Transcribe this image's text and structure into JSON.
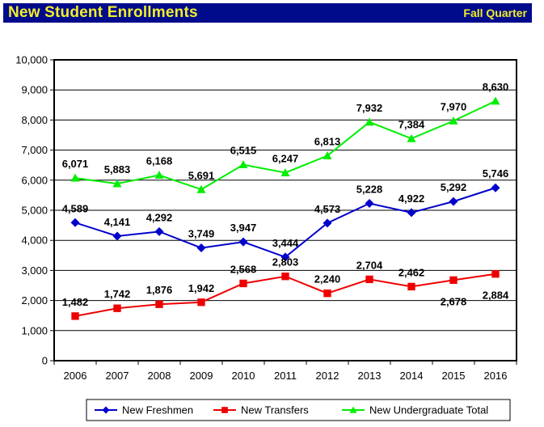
{
  "header": {
    "title": "New Student Enrollments",
    "subtitle": "Fall Quarter",
    "background_color": "#000b8c",
    "text_color": "#f2ee2a"
  },
  "chart_data": {
    "type": "line",
    "title": "",
    "xlabel": "",
    "ylabel": "",
    "categories": [
      "2006",
      "2007",
      "2008",
      "2009",
      "2010",
      "2011",
      "2012",
      "2013",
      "2014",
      "2015",
      "2016"
    ],
    "ylim": [
      0,
      10000
    ],
    "yticks": [
      "0",
      "1,000",
      "2,000",
      "3,000",
      "4,000",
      "5,000",
      "6,000",
      "7,000",
      "8,000",
      "9,000",
      "10,000"
    ],
    "grid": true,
    "legend_position": "bottom",
    "series": [
      {
        "name": "New Freshmen",
        "color": "#0000cc",
        "marker": "diamond",
        "values": [
          4589,
          4141,
          4292,
          3749,
          3947,
          3444,
          4573,
          5228,
          4922,
          5292,
          5746
        ],
        "labels": [
          "4,589",
          "4,141",
          "4,292",
          "3,749",
          "3,947",
          "3,444",
          "4,573",
          "5,228",
          "4,922",
          "5,292",
          "5,746"
        ]
      },
      {
        "name": "New Transfers",
        "color": "#ee0000",
        "marker": "square",
        "values": [
          1482,
          1742,
          1876,
          1942,
          2568,
          2803,
          2240,
          2704,
          2462,
          2678,
          2884
        ],
        "labels": [
          "1,482",
          "1,742",
          "1,876",
          "1,942",
          "2,568",
          "2,803",
          "2,240",
          "2,704",
          "2,462",
          "2,678",
          "2,884"
        ]
      },
      {
        "name": "New Undergraduate Total",
        "color": "#00ee00",
        "marker": "triangle",
        "values": [
          6071,
          5883,
          6168,
          5691,
          6515,
          6247,
          6813,
          7932,
          7384,
          7970,
          8630
        ],
        "labels": [
          "6,071",
          "5,883",
          "6,168",
          "5,691",
          "6,515",
          "6,247",
          "6,813",
          "7,932",
          "7,384",
          "7,970",
          "8,630"
        ]
      }
    ]
  }
}
